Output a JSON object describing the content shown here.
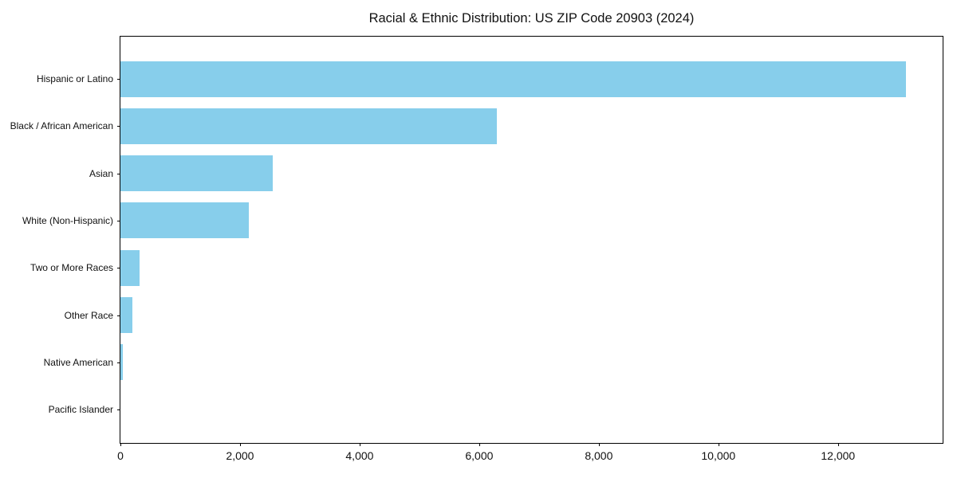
{
  "chart_data": {
    "type": "bar",
    "orientation": "horizontal",
    "title": "Racial & Ethnic Distribution: US ZIP Code 20903 (2024)",
    "categories": [
      "Hispanic or Latino",
      "Black / African American",
      "Asian",
      "White (Non-Hispanic)",
      "Two or More Races",
      "Other Race",
      "Native American",
      "Pacific Islander"
    ],
    "values": [
      13130,
      6300,
      2550,
      2150,
      320,
      200,
      40,
      0
    ],
    "xlabel": "",
    "ylabel": "",
    "xlim": [
      0,
      13750
    ],
    "xticks": [
      0,
      2000,
      4000,
      6000,
      8000,
      10000,
      12000
    ],
    "xtick_labels": [
      "0",
      "2,000",
      "4,000",
      "6,000",
      "8,000",
      "10,000",
      "12,000"
    ],
    "bar_color": "#87CEEB",
    "grid": false,
    "legend": null,
    "category_order": "top-to-bottom"
  }
}
